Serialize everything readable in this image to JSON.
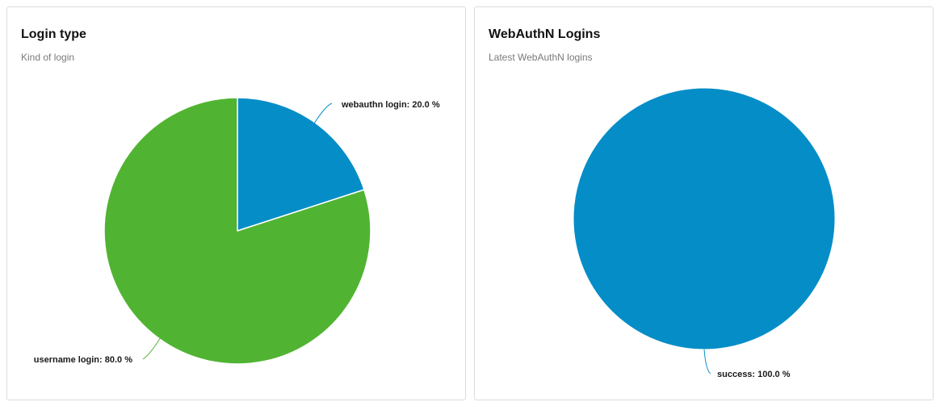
{
  "charts": [
    {
      "title": "Login type",
      "subtitle": "Kind of login"
    },
    {
      "title": "WebAuthN Logins",
      "subtitle": "Latest WebAuthN logins"
    }
  ],
  "chart_data": [
    {
      "type": "pie",
      "title": "Login type",
      "subtitle": "Kind of login",
      "slices": [
        {
          "name": "webauthn login",
          "value": 20.0,
          "label": "webauthn login: 20.0 %",
          "color": "#058dc7"
        },
        {
          "name": "username login",
          "value": 80.0,
          "label": "username login: 80.0 %",
          "color": "#50b432"
        }
      ]
    },
    {
      "type": "pie",
      "title": "WebAuthN Logins",
      "subtitle": "Latest WebAuthN logins",
      "slices": [
        {
          "name": "success",
          "value": 100.0,
          "label": "success: 100.0 %",
          "color": "#058dc7"
        }
      ]
    }
  ]
}
